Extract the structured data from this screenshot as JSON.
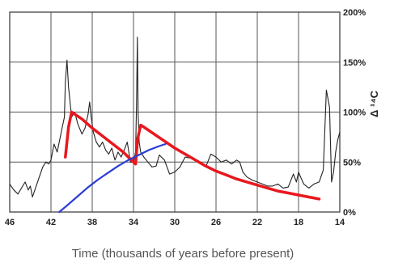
{
  "chart_data": {
    "type": "line",
    "title": "",
    "xlabel": "Time (thousands of years before present)",
    "ylabel": "Δ ¹⁴C",
    "x_reversed": true,
    "xlim": [
      46,
      14
    ],
    "ylim": [
      0,
      200
    ],
    "x_ticks": [
      46,
      42,
      38,
      34,
      30,
      26,
      22,
      18,
      14
    ],
    "y_ticks": [
      0,
      50,
      100,
      150,
      200
    ],
    "y_tick_labels": [
      "0%",
      "50%",
      "100%",
      "150%",
      "200%"
    ],
    "grid": true,
    "legend": "none",
    "series": [
      {
        "color": "#222222",
        "width": 1.1,
        "x": [
          46,
          45.6,
          45.2,
          44.8,
          44.5,
          44.2,
          44.0,
          43.8,
          43.5,
          43.2,
          42.8,
          42.5,
          42.2,
          42.0,
          41.7,
          41.4,
          41.1,
          40.9,
          40.7,
          40.6,
          40.45,
          40.3,
          40.0,
          39.7,
          39.4,
          39.0,
          38.7,
          38.4,
          38.25,
          38.1,
          37.9,
          37.6,
          37.3,
          37.0,
          36.7,
          36.4,
          36.1,
          35.8,
          35.5,
          35.2,
          34.9,
          34.6,
          34.3,
          34.0,
          33.8,
          33.7,
          33.62,
          33.55,
          33.45,
          33.3,
          33.0,
          32.6,
          32.2,
          31.8,
          31.5,
          31.0,
          30.5,
          30.0,
          29.5,
          29.0,
          28.5,
          28.0,
          27.5,
          27.0,
          26.5,
          26.0,
          25.5,
          25.0,
          24.5,
          24.0,
          23.7,
          23.4,
          23.0,
          22.5,
          22.0,
          21.5,
          21.0,
          20.5,
          20.0,
          19.5,
          19.0,
          18.5,
          18.2,
          18.0,
          17.8,
          17.5,
          17.0,
          16.5,
          16.0,
          15.6,
          15.3,
          15.0,
          14.8,
          14.6,
          14.4,
          14.2,
          14.0
        ],
        "y": [
          28,
          22,
          18,
          25,
          30,
          22,
          26,
          15,
          24,
          33,
          45,
          50,
          48,
          52,
          68,
          60,
          75,
          85,
          95,
          130,
          152,
          125,
          95,
          100,
          88,
          78,
          84,
          98,
          110,
          95,
          80,
          70,
          65,
          70,
          62,
          58,
          64,
          52,
          60,
          55,
          62,
          70,
          50,
          50,
          60,
          110,
          175,
          100,
          70,
          60,
          55,
          50,
          45,
          46,
          57,
          52,
          38,
          40,
          45,
          55,
          54,
          52,
          48,
          45,
          58,
          55,
          50,
          52,
          48,
          52,
          50,
          40,
          35,
          32,
          30,
          28,
          26,
          26,
          28,
          24,
          25,
          38,
          30,
          40,
          35,
          28,
          24,
          28,
          30,
          42,
          122,
          105,
          30,
          40,
          60,
          72,
          80
        ]
      },
      {
        "color": "#e8181e",
        "width": 3.5,
        "x": [
          40.6,
          40.3,
          40.0,
          39.0,
          38.0,
          37.0,
          36.0,
          35.0,
          34.5,
          34.0,
          33.8,
          33.6,
          33.3,
          33.0,
          32.0,
          31.0,
          30.0,
          29.0,
          28.0,
          27.0,
          26.0,
          25.0,
          24.0,
          23.0,
          22.0,
          21.0,
          20.0,
          19.0,
          18.0,
          17.0,
          16.0
        ],
        "y": [
          55,
          85,
          100,
          93,
          84,
          76,
          68,
          60,
          55,
          50,
          48,
          73,
          87,
          85,
          78,
          71,
          64,
          58,
          52,
          46,
          41,
          37,
          33,
          30,
          27,
          24,
          21,
          19,
          17,
          15,
          13
        ]
      },
      {
        "color": "#2a3cd6",
        "width": 2.2,
        "x": [
          41.2,
          40.5,
          39.5,
          38.5,
          37.5,
          36.5,
          35.5,
          34.5,
          33.5,
          32.5,
          31.5,
          30.9
        ],
        "y": [
          0,
          6,
          15,
          24,
          32,
          39,
          46,
          52,
          57,
          62,
          66,
          68
        ]
      }
    ]
  }
}
